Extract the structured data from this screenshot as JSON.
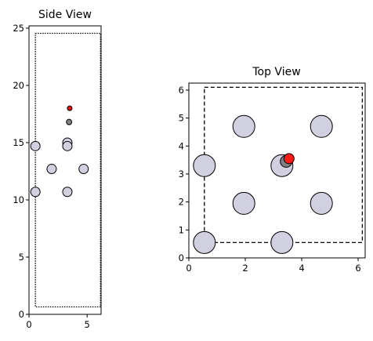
{
  "chart_data": [
    {
      "type": "scatter",
      "title": "Side View",
      "xlabel": "",
      "ylabel": "",
      "xlim": [
        0,
        6.2
      ],
      "ylim": [
        0,
        25.2
      ],
      "xticks": [
        0,
        5
      ],
      "xtick_labels": [
        "0",
        "5"
      ],
      "yticks": [
        0,
        5,
        10,
        15,
        20,
        25
      ],
      "ytick_labels": [
        "0",
        "5",
        "10",
        "15",
        "20",
        "25"
      ],
      "grid": false,
      "cell_box": {
        "x": [
          0.55,
          6.15
        ],
        "y": [
          0.65,
          24.55
        ],
        "style": "dotted"
      },
      "series": [
        {
          "kind": "large-atom",
          "color": "#d0d0e0",
          "points": [
            [
              0.55,
              14.7
            ],
            [
              0.55,
              10.7
            ],
            [
              1.95,
              12.7
            ],
            [
              3.3,
              15.0
            ],
            [
              3.3,
              14.7
            ],
            [
              3.3,
              10.7
            ],
            [
              4.7,
              12.7
            ]
          ]
        },
        {
          "kind": "small-atom",
          "color": "#808080",
          "points": [
            [
              3.45,
              16.8
            ]
          ]
        },
        {
          "kind": "tiny-atom",
          "color": "#e8150d",
          "points": [
            [
              3.5,
              18.0
            ]
          ]
        }
      ]
    },
    {
      "type": "scatter",
      "title": "Top View",
      "xlabel": "",
      "ylabel": "",
      "xlim": [
        0,
        6.25
      ],
      "ylim": [
        0,
        6.25
      ],
      "xticks": [
        0,
        2,
        4,
        6
      ],
      "xtick_labels": [
        "0",
        "2",
        "4",
        "6"
      ],
      "yticks": [
        0,
        1,
        2,
        3,
        4,
        5,
        6
      ],
      "ytick_labels": [
        "0",
        "1",
        "2",
        "3",
        "4",
        "5",
        "6"
      ],
      "grid": false,
      "cell_box": {
        "x": [
          0.55,
          6.15
        ],
        "y": [
          0.55,
          6.1
        ],
        "style": "dashed"
      },
      "series": [
        {
          "kind": "large-atom",
          "color": "#d0d0e0",
          "points": [
            [
              0.55,
              0.55
            ],
            [
              3.3,
              0.55
            ],
            [
              1.95,
              1.95
            ],
            [
              4.7,
              1.95
            ],
            [
              0.55,
              3.3
            ],
            [
              3.3,
              3.3
            ],
            [
              1.95,
              4.7
            ],
            [
              4.7,
              4.7
            ]
          ]
        },
        {
          "kind": "small-atom",
          "color": "#808080",
          "points": [
            [
              3.45,
              3.45
            ]
          ]
        },
        {
          "kind": "tiny-atom",
          "color": "#ff1a1a",
          "points": [
            [
              3.55,
              3.55
            ]
          ]
        }
      ]
    }
  ]
}
